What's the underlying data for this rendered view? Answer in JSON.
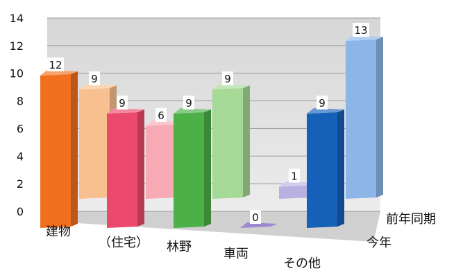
{
  "chart_data": {
    "type": "bar",
    "categories": [
      "建物",
      "（住宅）",
      "林野",
      "車両",
      "その他"
    ],
    "series": [
      {
        "name": "今年",
        "values": [
          12,
          9,
          9,
          0,
          9
        ],
        "colors": [
          "#f07020",
          "#ec4a6c",
          "#4caf48",
          "#6a48b8",
          "#1560b8"
        ]
      },
      {
        "name": "前年同期",
        "values": [
          9,
          6,
          9,
          1,
          13
        ],
        "colors": [
          "#f8c090",
          "#f6aab4",
          "#a6d896",
          "#b8b0e0",
          "#8cb6e8"
        ]
      }
    ],
    "data_labels": {
      "今年": [
        "12",
        "9",
        "9",
        "0",
        "9"
      ],
      "前年同期": [
        "9",
        "6",
        "9",
        "1",
        "13"
      ]
    },
    "yticks": [
      "0",
      "2",
      "4",
      "6",
      "8",
      "10",
      "12",
      "14"
    ],
    "ylim": [
      0,
      14
    ],
    "projection": "3d",
    "grid": true,
    "wall_color": "#d8d8d8",
    "floor_color": "#d0d0d0"
  }
}
